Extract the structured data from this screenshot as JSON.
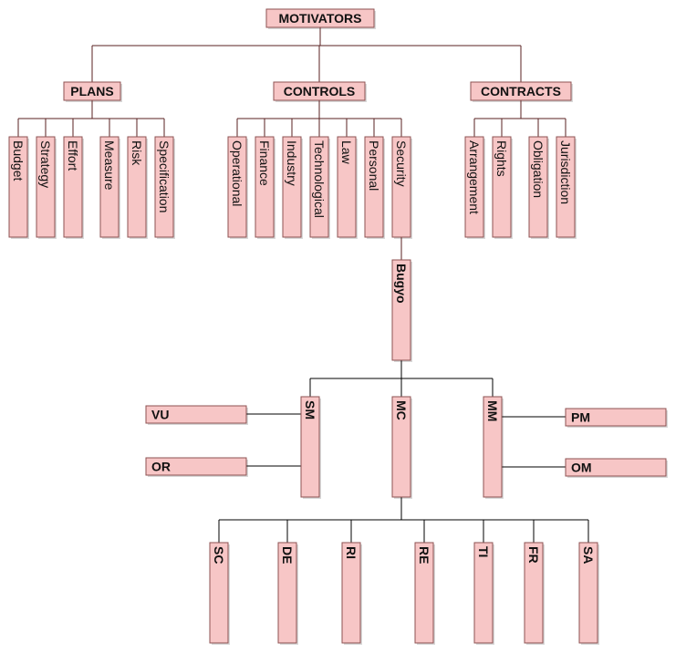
{
  "root": {
    "label": "MOTIVATORS"
  },
  "categories": [
    {
      "id": "plans",
      "label": "PLANS",
      "items": [
        "Budget",
        "Strategy",
        "Effort",
        "Measure",
        "Risk",
        "Specification"
      ]
    },
    {
      "id": "controls",
      "label": "CONTROLS",
      "items": [
        "Operational",
        "Finance",
        "Industry",
        "Technological",
        "Law",
        "Personal",
        "Security"
      ]
    },
    {
      "id": "contracts",
      "label": "CONTRACTS",
      "items": [
        "Arrangement",
        "Rights",
        "Obligation",
        "Jurisdiction"
      ]
    }
  ],
  "bugyo": {
    "label": "Bugyo"
  },
  "level3": [
    {
      "id": "sm",
      "label": "SM",
      "children": [
        "VU",
        "OR"
      ]
    },
    {
      "id": "mc",
      "label": "MC"
    },
    {
      "id": "mm",
      "label": "MM",
      "children": [
        "PM",
        "OM"
      ]
    }
  ],
  "mc_children": [
    "SC",
    "DE",
    "RI",
    "RE",
    "TI",
    "FR",
    "SA"
  ]
}
